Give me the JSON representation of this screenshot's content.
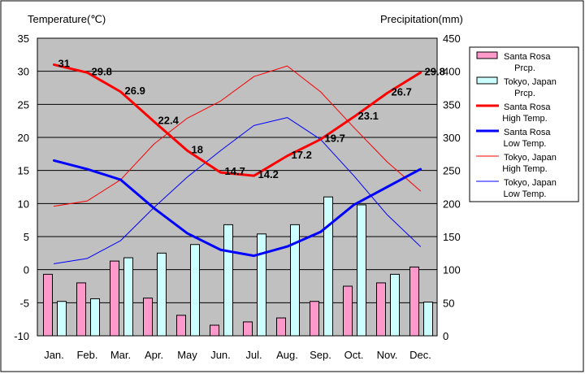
{
  "chart_data": {
    "type": "bar",
    "categories": [
      "Jan.",
      "Feb.",
      "Mar.",
      "Apr.",
      "May",
      "Jun.",
      "Jul.",
      "Aug.",
      "Sep.",
      "Oct.",
      "Nov.",
      "Dec."
    ],
    "left_axis_title": "Temperature(℃)",
    "right_axis_title": "Precipitation(mm)",
    "left_ylim": [
      -10,
      35
    ],
    "left_ticks": [
      35,
      30,
      25,
      20,
      15,
      10,
      5,
      0,
      -5,
      -10
    ],
    "right_ylim": [
      0,
      450
    ],
    "right_ticks": [
      450,
      400,
      350,
      300,
      250,
      200,
      150,
      100,
      50,
      0
    ],
    "grid": true,
    "legend_position": "right",
    "series": [
      {
        "name": [
          "Santa Rosa",
          "Prcp."
        ],
        "kind": "bar",
        "axis": "right",
        "color": "#ff99cc",
        "values": [
          93,
          80,
          113,
          57,
          31,
          16,
          21,
          27,
          52,
          75,
          80,
          104
        ]
      },
      {
        "name": [
          "Tokyo, Japan",
          "Prcp."
        ],
        "kind": "bar",
        "axis": "right",
        "color": "#ccffff",
        "values": [
          52,
          56,
          118,
          125,
          138,
          168,
          154,
          168,
          210,
          198,
          93,
          51
        ]
      },
      {
        "name": [
          "Santa Rosa",
          "High Temp."
        ],
        "kind": "line",
        "axis": "left",
        "color": "#ff0000",
        "width": 3,
        "values": [
          31,
          29.8,
          26.9,
          22.4,
          18,
          14.7,
          14.2,
          17.2,
          19.7,
          23.1,
          26.7,
          29.8
        ],
        "labels": [
          "31",
          "29.8",
          "26.9",
          "22.4",
          "18",
          "14.7",
          "14.2",
          "17.2",
          "19.7",
          "23.1",
          "26.7",
          "29.8"
        ]
      },
      {
        "name": [
          "Santa Rosa",
          "Low Temp."
        ],
        "kind": "line",
        "axis": "left",
        "color": "#0000ff",
        "width": 3,
        "values": [
          16.5,
          15.2,
          13.6,
          9.3,
          5.5,
          3.0,
          2.1,
          3.5,
          5.7,
          9.8,
          12.5,
          15.2
        ]
      },
      {
        "name": [
          "Tokyo, Japan",
          "High Temp."
        ],
        "kind": "line",
        "axis": "left",
        "color": "#ff0000",
        "width": 1,
        "values": [
          9.6,
          10.4,
          13.6,
          19.0,
          22.9,
          25.5,
          29.2,
          30.8,
          26.9,
          21.5,
          16.3,
          11.9
        ]
      },
      {
        "name": [
          "Tokyo, Japan",
          "Low Temp."
        ],
        "kind": "line",
        "axis": "left",
        "color": "#0000ff",
        "width": 1,
        "values": [
          0.9,
          1.7,
          4.4,
          9.4,
          14.0,
          18.0,
          21.8,
          23.0,
          19.7,
          14.2,
          8.3,
          3.5
        ]
      }
    ]
  }
}
